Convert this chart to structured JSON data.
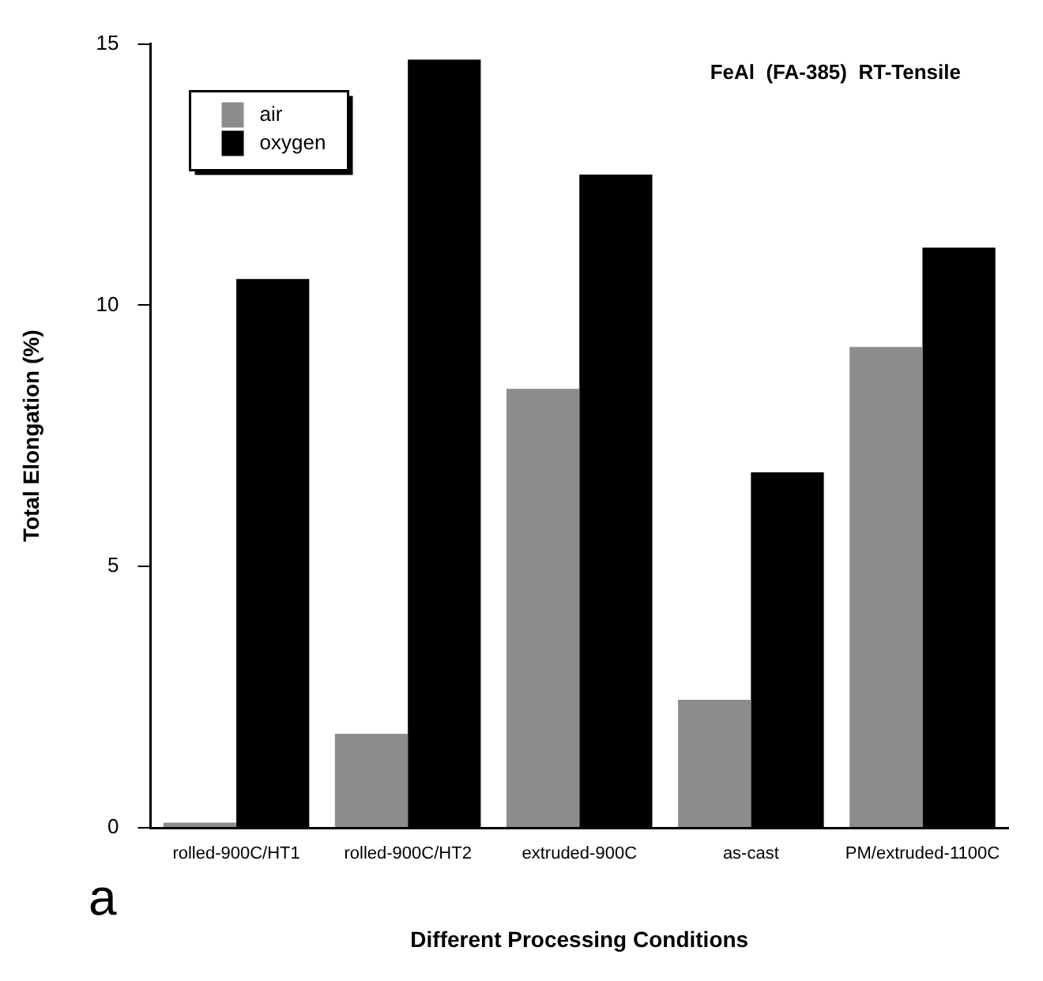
{
  "chart_data": {
    "type": "bar",
    "title": "FeAl  (FA-385)  RT-Tensile",
    "xlabel": "Different Processing Conditions",
    "ylabel": "Total Elongation (%)",
    "categories": [
      "rolled-900C/HT1",
      "rolled-900C/HT2",
      "extruded-900C",
      "as-cast",
      "PM/extruded-1100C"
    ],
    "series": [
      {
        "name": "air",
        "color": "#8c8c8c",
        "values": [
          0.1,
          1.8,
          8.4,
          2.45,
          9.2
        ]
      },
      {
        "name": "oxygen",
        "color": "#000000",
        "values": [
          10.5,
          14.7,
          12.5,
          6.8,
          11.1
        ]
      }
    ],
    "ylim": [
      0,
      15
    ],
    "yticks": [
      0,
      5,
      10,
      15
    ],
    "grid": false,
    "legend": "top left",
    "annotations": [
      "a"
    ]
  }
}
